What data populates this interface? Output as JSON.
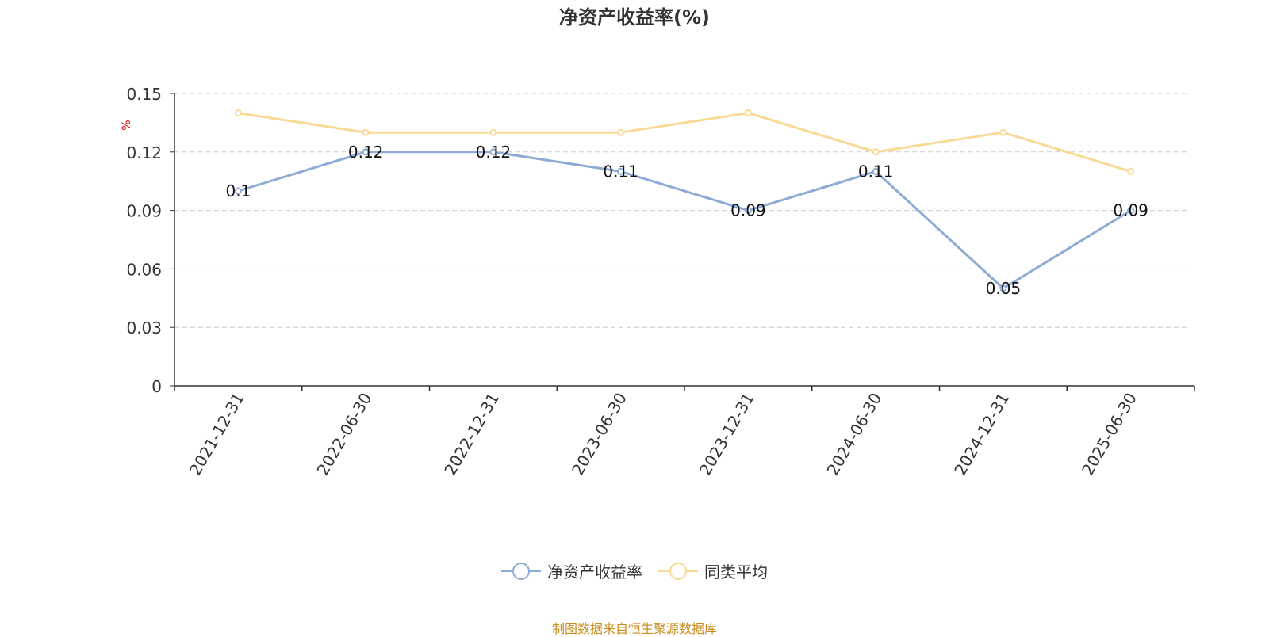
{
  "chart_data": {
    "type": "line",
    "title": "净资产收益率(%)",
    "ylabel": "%",
    "xlabel": "",
    "categories": [
      "2021-12-31",
      "2022-06-30",
      "2022-12-31",
      "2023-06-30",
      "2023-12-31",
      "2024-06-30",
      "2024-12-31",
      "2025-06-30"
    ],
    "ylim": [
      0,
      0.15
    ],
    "yticks": [
      "0",
      "0.03",
      "0.06",
      "0.09",
      "0.12",
      "0.15"
    ],
    "grid": true,
    "legend_position": "bottom-center",
    "series": [
      {
        "name": "净资产收益率",
        "color": "#8eabd6",
        "values": [
          0.1,
          0.12,
          0.12,
          0.11,
          0.09,
          0.11,
          0.05,
          0.09
        ],
        "labels": [
          "0.1",
          "0.12",
          "0.12",
          "0.11",
          "0.09",
          "0.11",
          "0.05",
          "0.09"
        ]
      },
      {
        "name": "同类平均",
        "color": "#fad996",
        "values": [
          0.14,
          0.13,
          0.13,
          0.13,
          0.14,
          0.12,
          0.13,
          0.11
        ]
      }
    ]
  },
  "source_text": "制图数据来自恒生聚源数据库",
  "colors": {
    "axis": "#333333",
    "grid": "#cccccc",
    "ylabel": "#e00000",
    "source": "#c98b1c"
  }
}
